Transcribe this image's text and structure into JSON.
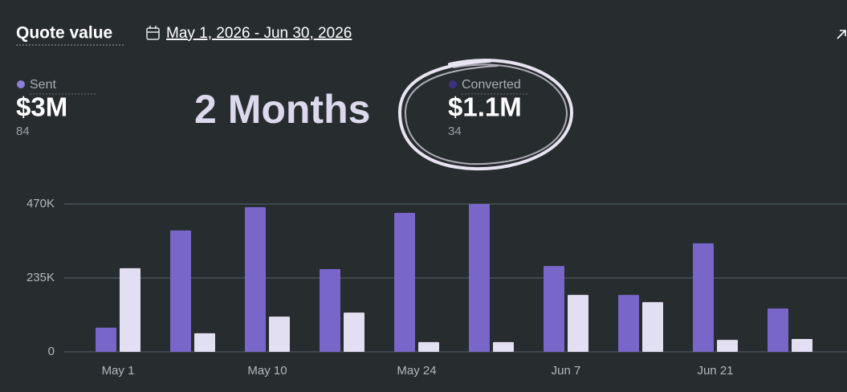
{
  "header": {
    "title": "Quote value",
    "date_range": "May 1, 2026 - Jun 30, 2026"
  },
  "annotation": "2 Months",
  "chart_data": {
    "type": "bar",
    "categories": [
      "May 1",
      null,
      "May 10",
      null,
      "May 24",
      null,
      "Jun 7",
      null,
      "Jun 21",
      null
    ],
    "series": [
      {
        "name": "Sent",
        "color": "#7866c9",
        "legend_color": "#8e7fd6",
        "total": "$3M",
        "count": 84,
        "values": [
          77000,
          386000,
          460000,
          263000,
          442000,
          470000,
          273000,
          181000,
          345000,
          138000
        ]
      },
      {
        "name": "Converted",
        "color": "#e3dff2",
        "legend_color": "#3e3184",
        "total": "$1.1M",
        "count": 34,
        "values": [
          266000,
          59000,
          112000,
          125000,
          31000,
          31000,
          181000,
          158000,
          38000,
          41000
        ]
      }
    ],
    "ylim": [
      0,
      470000
    ],
    "yticks": [
      0,
      {
        "value": 235000,
        "label": "235K"
      },
      {
        "value": 470000,
        "label": "470K"
      }
    ],
    "grid": true
  }
}
